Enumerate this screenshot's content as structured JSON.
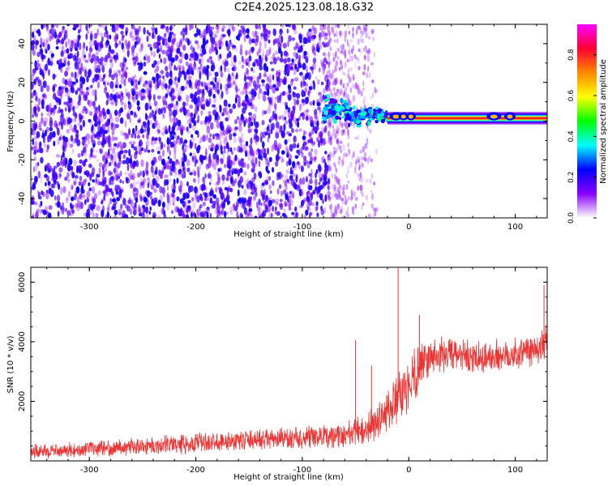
{
  "title": "C2E4.2025.123.08.18.G32",
  "chart_data": [
    {
      "type": "heatmap",
      "xlabel": "Height of straight line (km)",
      "ylabel": "Frequency (Hz)",
      "xlim": [
        -355,
        130
      ],
      "ylim": [
        -50,
        50
      ],
      "xticks": [
        -300,
        -200,
        -100,
        0,
        100
      ],
      "yticks": [
        -40,
        -20,
        0,
        20,
        40
      ],
      "colorbar": {
        "label": "Normalized spectral amplitude",
        "range": [
          0,
          0.95
        ],
        "ticks": [
          0.0,
          0.2,
          0.4,
          0.6,
          0.8
        ],
        "colormap": [
          "#ff00ff",
          "#ff0033",
          "#ff8800",
          "#ffff00",
          "#00ff00",
          "#00ffff",
          "#0000ff",
          "#8800ff",
          "#ffffff"
        ]
      },
      "regions": [
        {
          "x": [
            -355,
            -75
          ],
          "y": [
            -50,
            50
          ],
          "description": "Broadband low amplitude speckle",
          "amplitude": 0.08
        },
        {
          "x": [
            -75,
            -30
          ],
          "y": [
            -50,
            50
          ],
          "description": "Fading sparse speckle",
          "amplitude": 0.03
        },
        {
          "x": [
            -80,
            -20
          ],
          "y": [
            0,
            8
          ],
          "description": "Spread signal band",
          "amplitude": 0.3
        },
        {
          "x": [
            -20,
            130
          ],
          "y": [
            0,
            3
          ],
          "description": "Narrow carrier line",
          "amplitude": 0.95
        }
      ]
    },
    {
      "type": "line",
      "xlabel": "Height of straight line (km)",
      "ylabel": "SNR (10 * v/v)",
      "xlim": [
        -355,
        130
      ],
      "ylim": [
        0,
        6500
      ],
      "xticks": [
        -300,
        -200,
        -100,
        0,
        100
      ],
      "yticks": [
        2000,
        4000,
        6000
      ],
      "series": [
        {
          "color": "#ee3333",
          "x": [
            -355,
            -300,
            -250,
            -200,
            -150,
            -100,
            -60,
            -50,
            -40,
            -30,
            -20,
            -10,
            0,
            10,
            20,
            40,
            60,
            80,
            100,
            130
          ],
          "y": [
            300,
            400,
            500,
            600,
            700,
            750,
            850,
            1000,
            1050,
            1300,
            1700,
            2000,
            2600,
            3200,
            3500,
            3600,
            3400,
            3500,
            3600,
            3900
          ],
          "spread": [
            250,
            250,
            300,
            350,
            350,
            400,
            450,
            500,
            550,
            650,
            800,
            900,
            1000,
            900,
            700,
            600,
            600,
            600,
            600,
            700
          ],
          "spikes": [
            {
              "x": -50,
              "y": 4050
            },
            {
              "x": -35,
              "y": 3200
            },
            {
              "x": -10,
              "y": 6500
            },
            {
              "x": 10,
              "y": 4900
            },
            {
              "x": 127,
              "y": 5900
            }
          ]
        }
      ]
    }
  ]
}
